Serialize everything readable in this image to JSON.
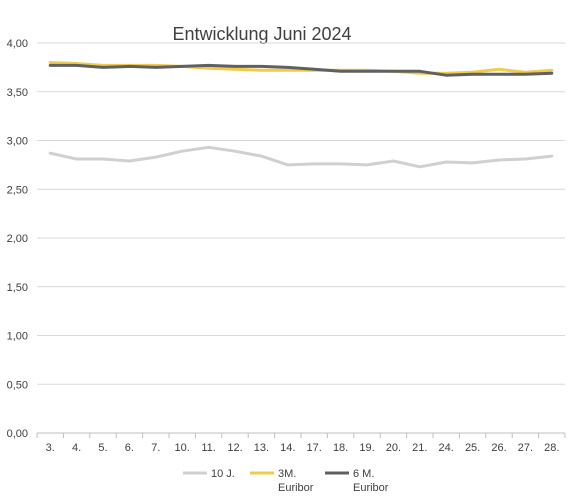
{
  "chart_data": {
    "type": "line",
    "title": "Entwicklung Juni 2024",
    "xlabel": "",
    "ylabel": "",
    "categories": [
      "3.",
      "4.",
      "5.",
      "6.",
      "7.",
      "10.",
      "11.",
      "12.",
      "13.",
      "14.",
      "17.",
      "18.",
      "19.",
      "20.",
      "21.",
      "24.",
      "25.",
      "26.",
      "27.",
      "28."
    ],
    "ylim": [
      0,
      4
    ],
    "yticks": [
      "0,00",
      "0,50",
      "1,00",
      "1,50",
      "2,00",
      "2,50",
      "3,00",
      "3,50",
      "4,00"
    ],
    "ytick_values": [
      0,
      0.5,
      1,
      1.5,
      2,
      2.5,
      3,
      3.5,
      4
    ],
    "grid": true,
    "legend_position": "bottom",
    "series": [
      {
        "name": "10 J.",
        "color": "#d0d0d0",
        "values": [
          2.87,
          2.81,
          2.81,
          2.79,
          2.83,
          2.89,
          2.93,
          2.89,
          2.84,
          2.75,
          2.76,
          2.76,
          2.75,
          2.79,
          2.73,
          2.78,
          2.77,
          2.8,
          2.81,
          2.84
        ]
      },
      {
        "name_lines": [
          "3M.",
          "Euribor"
        ],
        "color": "#f0cc4a",
        "values": [
          3.8,
          3.79,
          3.77,
          3.77,
          3.77,
          3.76,
          3.74,
          3.73,
          3.72,
          3.72,
          3.72,
          3.72,
          3.72,
          3.71,
          3.69,
          3.69,
          3.7,
          3.73,
          3.7,
          3.72
        ]
      },
      {
        "name_lines": [
          "6 M.",
          "Euribor"
        ],
        "color": "#606060",
        "values": [
          3.77,
          3.77,
          3.75,
          3.76,
          3.75,
          3.76,
          3.77,
          3.76,
          3.76,
          3.75,
          3.73,
          3.71,
          3.71,
          3.71,
          3.71,
          3.67,
          3.68,
          3.68,
          3.68,
          3.69
        ]
      }
    ]
  }
}
